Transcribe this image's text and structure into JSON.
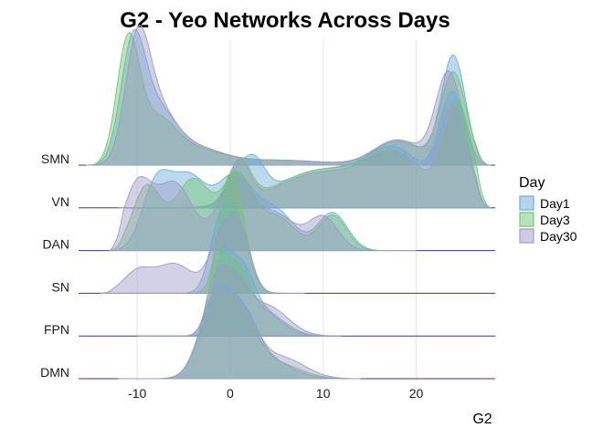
{
  "chart_data": {
    "type": "ridgeline",
    "title": "G2 - Yeo Networks Across Days",
    "xlabel": "G2",
    "ylabel": "",
    "xlim": [
      -16.5,
      28.5
    ],
    "x_ticks": [
      -10,
      0,
      10,
      20
    ],
    "x_tick_labels": [
      "-10",
      "0",
      "10",
      "20"
    ],
    "grid": "vertical major lines",
    "legend": {
      "title": "Day",
      "position": "right",
      "entries": [
        {
          "name": "Day1",
          "color": "#6BAED6"
        },
        {
          "name": "Day3",
          "color": "#74C476"
        },
        {
          "name": "Day30",
          "color": "#9E9AC8"
        }
      ]
    },
    "categories": [
      "DMN",
      "FPN",
      "SN",
      "DAN",
      "VN",
      "SMN"
    ],
    "series": [
      {
        "name": "Day1",
        "densities": {
          "SMN": {
            "range": [
              -15.5,
              28
            ],
            "peaks": [
              [
                -10.5,
                1.3,
                1.3
              ],
              [
                -8,
                0.6,
                2
              ],
              [
                -4,
                0.2,
                3
              ],
              [
                5,
                0.06,
                5
              ],
              [
                18,
                0.3,
                2.5
              ],
              [
                24,
                1.3,
                1.3
              ]
            ]
          },
          "VN": {
            "range": [
              -12,
              28
            ],
            "peaks": [
              [
                0.5,
                0.28,
                1
              ],
              [
                2.5,
                0.45,
                1.2
              ],
              [
                10,
                0.45,
                5
              ],
              [
                18,
                0.6,
                3
              ],
              [
                24,
                1.3,
                1.5
              ]
            ]
          },
          "DAN": {
            "range": [
              -13,
              20
            ],
            "peaks": [
              [
                -8,
                0.72,
                1.5
              ],
              [
                -4.5,
                0.85,
                2
              ],
              [
                0.5,
                0.85,
                2
              ],
              [
                5,
                0.45,
                2
              ],
              [
                11,
                0.45,
                1.6
              ]
            ]
          },
          "SN": {
            "range": [
              -14,
              8
            ],
            "peaks": [
              [
                -1.5,
                0.4,
                1
              ],
              [
                0.3,
                1.0,
                1.4
              ]
            ]
          },
          "FPN": {
            "range": [
              -10,
              12
            ],
            "peaks": [
              [
                -1,
                0.7,
                0.9
              ],
              [
                1,
                0.8,
                1.4
              ],
              [
                4,
                0.25,
                2
              ]
            ]
          },
          "DMN": {
            "range": [
              -12,
              14
            ],
            "peaks": [
              [
                -1.5,
                1.0,
                1.7
              ],
              [
                1.5,
                0.55,
                1.5
              ],
              [
                4,
                0.22,
                2.5
              ]
            ]
          }
        }
      },
      {
        "name": "Day3",
        "densities": {
          "SMN": {
            "range": [
              -15.5,
              28
            ],
            "peaks": [
              [
                -11,
                1.4,
                1.2
              ],
              [
                -8,
                0.5,
                2
              ],
              [
                -4,
                0.18,
                3
              ],
              [
                5,
                0.06,
                5
              ],
              [
                18,
                0.28,
                2.5
              ],
              [
                24,
                1.1,
                1.4
              ]
            ]
          },
          "VN": {
            "range": [
              -12,
              28
            ],
            "peaks": [
              [
                1,
                0.5,
                1.2
              ],
              [
                10,
                0.45,
                5
              ],
              [
                18,
                0.55,
                3
              ],
              [
                24.5,
                1.2,
                1.5
              ]
            ]
          },
          "DAN": {
            "range": [
              -13,
              20
            ],
            "peaks": [
              [
                -9,
                0.75,
                1.5
              ],
              [
                -4,
                0.85,
                2
              ],
              [
                0.8,
                0.85,
                1.6
              ],
              [
                5,
                0.4,
                2
              ],
              [
                11,
                0.42,
                1.5
              ]
            ]
          },
          "SN": {
            "range": [
              -14,
              8
            ],
            "peaks": [
              [
                -0.5,
                0.8,
                1.0
              ],
              [
                0.8,
                0.9,
                1.2
              ]
            ]
          },
          "FPN": {
            "range": [
              -10,
              12
            ],
            "peaks": [
              [
                -1.5,
                0.7,
                0.9
              ],
              [
                0.5,
                0.75,
                1.4
              ],
              [
                3.5,
                0.28,
                2
              ]
            ]
          },
          "DMN": {
            "range": [
              -12,
              14
            ],
            "peaks": [
              [
                -1.5,
                0.95,
                1.7
              ],
              [
                1.5,
                0.55,
                1.6
              ],
              [
                5,
                0.18,
                2.5
              ]
            ]
          }
        }
      },
      {
        "name": "Day30",
        "densities": {
          "SMN": {
            "range": [
              -15.5,
              28
            ],
            "peaks": [
              [
                -10,
                1.25,
                1.3
              ],
              [
                -8,
                0.6,
                2
              ],
              [
                -4,
                0.2,
                3
              ],
              [
                5,
                0.06,
                5
              ],
              [
                18,
                0.3,
                2.5
              ],
              [
                23.5,
                1.1,
                1.4
              ]
            ]
          },
          "VN": {
            "range": [
              -12,
              28
            ],
            "peaks": [
              [
                1,
                0.5,
                1.1
              ],
              [
                10,
                0.42,
                5
              ],
              [
                18,
                0.55,
                3
              ],
              [
                24,
                1.15,
                1.5
              ]
            ]
          },
          "DAN": {
            "range": [
              -13,
              20
            ],
            "peaks": [
              [
                -10,
                0.75,
                1.5
              ],
              [
                -6,
                0.8,
                2
              ],
              [
                0.5,
                0.85,
                1.8
              ],
              [
                5,
                0.42,
                2
              ],
              [
                10,
                0.4,
                1.6
              ]
            ]
          },
          "SN": {
            "range": [
              -14,
              8
            ],
            "peaks": [
              [
                -10,
                0.25,
                1.5
              ],
              [
                -6,
                0.35,
                2
              ],
              [
                -1,
                0.6,
                1.3
              ],
              [
                1,
                0.7,
                1.2
              ]
            ]
          },
          "FPN": {
            "range": [
              -10,
              12
            ],
            "peaks": [
              [
                -1.5,
                0.55,
                1
              ],
              [
                0.5,
                0.6,
                1.4
              ],
              [
                4,
                0.35,
                2.2
              ]
            ]
          },
          "DMN": {
            "range": [
              -12,
              14
            ],
            "peaks": [
              [
                -1.5,
                0.95,
                1.7
              ],
              [
                1.5,
                0.6,
                1.6
              ],
              [
                5.5,
                0.25,
                2.5
              ]
            ]
          }
        }
      }
    ]
  }
}
